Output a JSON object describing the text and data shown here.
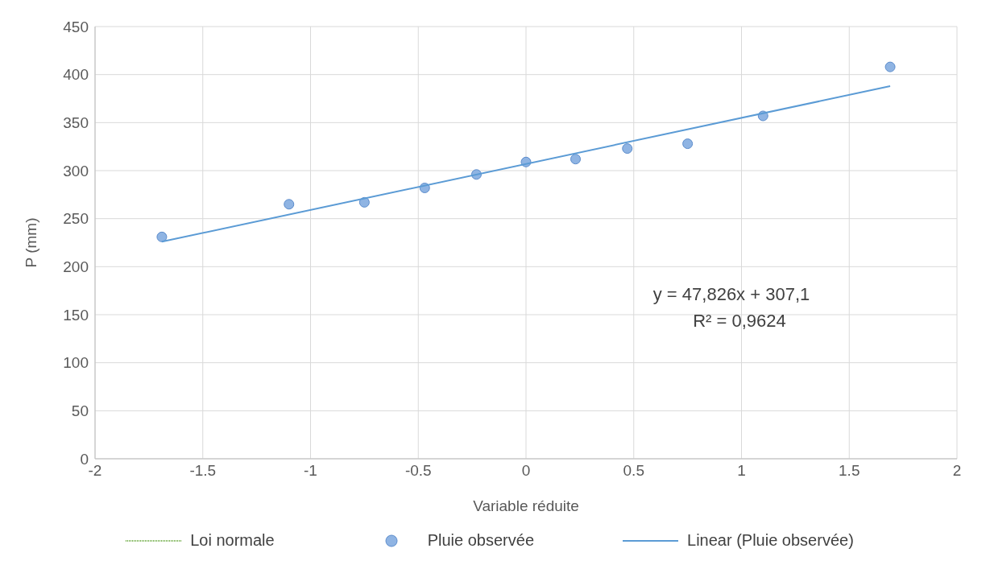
{
  "chart_data": {
    "type": "scatter",
    "xlabel": "Variable réduite",
    "ylabel": "P (mm)",
    "xlim": [
      -2,
      2
    ],
    "xticks": [
      -2,
      -1.5,
      -1,
      -0.5,
      0,
      0.5,
      1,
      1.5,
      2
    ],
    "ylim": [
      0,
      450
    ],
    "yticks": [
      0,
      50,
      100,
      150,
      200,
      250,
      300,
      350,
      400,
      450
    ],
    "grid": true,
    "legend": "bottom",
    "series": [
      {
        "name": "Loi normale",
        "type": "line",
        "color": "#70ad47",
        "line_style": "dotted",
        "marker": "none"
      },
      {
        "name": "Pluie observée",
        "color": "#8fb4e3",
        "marker": "circle",
        "x": [
          -1.69,
          -1.1,
          -0.75,
          -0.47,
          -0.23,
          0,
          0.23,
          0.47,
          0.75,
          1.1,
          1.69
        ],
        "values": [
          231,
          265,
          267,
          282,
          296,
          309,
          312,
          323,
          328,
          357,
          408
        ]
      },
      {
        "name": "Linear (Pluie observée)",
        "type": "line",
        "color": "#5b9bd5",
        "line_style": "solid",
        "marker": "none",
        "x": [
          -1.69,
          1.69
        ],
        "values": [
          226,
          388
        ]
      }
    ],
    "annotations": [
      "y = 47,826x + 307,1",
      "R² = 0,9624"
    ]
  }
}
